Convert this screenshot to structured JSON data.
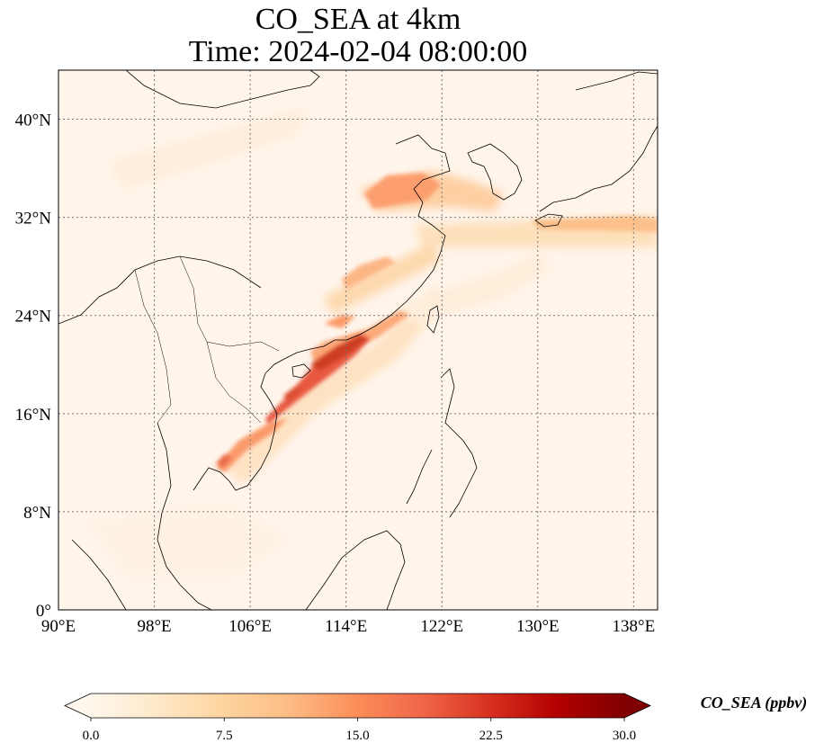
{
  "title": {
    "line1": "CO_SEA at 4km",
    "line2": "Time: 2024-02-04 08:00:00"
  },
  "map": {
    "lon_range": [
      90,
      140
    ],
    "lat_range": [
      0,
      44
    ],
    "lon_ticks": [
      {
        "value": 90,
        "label": "90°E"
      },
      {
        "value": 98,
        "label": "98°E"
      },
      {
        "value": 106,
        "label": "106°E"
      },
      {
        "value": 114,
        "label": "114°E"
      },
      {
        "value": 122,
        "label": "122°E"
      },
      {
        "value": 130,
        "label": "130°E"
      },
      {
        "value": 138,
        "label": "138°E"
      }
    ],
    "lat_ticks": [
      {
        "value": 0,
        "label": "0°"
      },
      {
        "value": 8,
        "label": "8°N"
      },
      {
        "value": 16,
        "label": "16°N"
      },
      {
        "value": 24,
        "label": "24°N"
      },
      {
        "value": 32,
        "label": "32°N"
      },
      {
        "value": 40,
        "label": "40°N"
      }
    ],
    "gridlines": "dotted",
    "background_color": "#fff5eb",
    "coastline_color": "#000000"
  },
  "colorbar": {
    "label": "CO_SEA (ppbv)",
    "min": 0.0,
    "max": 30.0,
    "extend": "both",
    "colormap": "OrRd",
    "colors": [
      "#fff7ec",
      "#fee8c8",
      "#fdd49e",
      "#fdbb84",
      "#fc8d59",
      "#ef6548",
      "#d7301f",
      "#b30000",
      "#7f0000"
    ],
    "ticks": [
      {
        "value": 0.0,
        "label": "0.0"
      },
      {
        "value": 7.5,
        "label": "7.5"
      },
      {
        "value": 15.0,
        "label": "15.0"
      },
      {
        "value": 22.5,
        "label": "22.5"
      },
      {
        "value": 30.0,
        "label": "30.0"
      }
    ]
  }
}
